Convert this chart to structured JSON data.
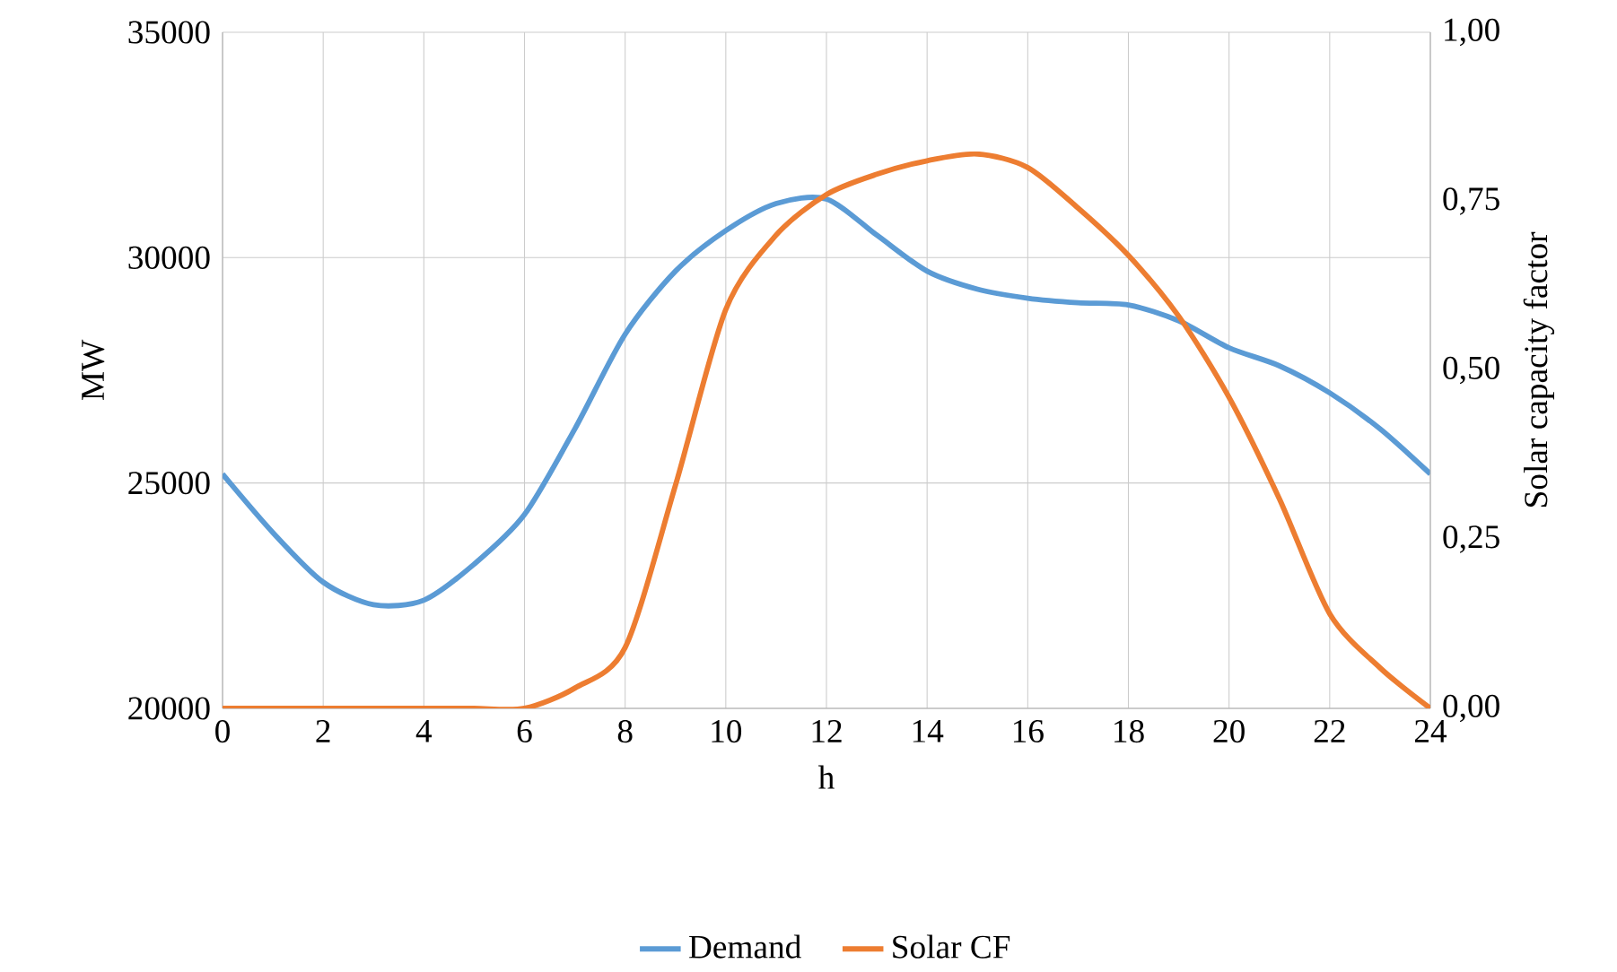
{
  "chart_data": {
    "type": "line",
    "xlabel": "h",
    "ylabel": "MW",
    "y2label": "Solar capacity factor",
    "x": [
      0,
      1,
      2,
      3,
      4,
      5,
      6,
      7,
      8,
      9,
      10,
      11,
      12,
      13,
      14,
      15,
      16,
      17,
      18,
      19,
      20,
      21,
      22,
      23,
      24
    ],
    "xlim": [
      0,
      24
    ],
    "xticks": [
      0,
      2,
      4,
      6,
      8,
      10,
      12,
      14,
      16,
      18,
      20,
      22,
      24
    ],
    "ylim": [
      20000,
      35000
    ],
    "yticks": [
      20000,
      25000,
      30000,
      35000
    ],
    "y2lim": [
      0,
      1
    ],
    "y2ticks": [
      {
        "value": 0,
        "label": "0,00"
      },
      {
        "value": 0.25,
        "label": "0,25"
      },
      {
        "value": 0.5,
        "label": "0,50"
      },
      {
        "value": 0.75,
        "label": "0,75"
      },
      {
        "value": 1,
        "label": "1,00"
      }
    ],
    "grid": true,
    "legend": "bottom",
    "series": [
      {
        "name": "Demand",
        "color": "#5b9bd5",
        "values": [
          25200,
          23900,
          22800,
          22300,
          22400,
          23200,
          24300,
          26200,
          28300,
          29700,
          30600,
          31200,
          31300,
          30500,
          29700,
          29300,
          29100,
          29000,
          28950,
          28600,
          28000,
          27600,
          27000,
          26200,
          25200
        ]
      },
      {
        "name": "Solar CF",
        "color": "#ed7d31",
        "axis": "y2",
        "values": [
          0,
          0,
          0,
          0,
          0,
          0,
          0,
          0.03,
          0.09,
          0.33,
          0.59,
          0.7,
          0.76,
          0.79,
          0.81,
          0.82,
          0.8,
          0.74,
          0.67,
          0.58,
          0.46,
          0.31,
          0.14,
          0.06,
          0
        ]
      }
    ]
  }
}
